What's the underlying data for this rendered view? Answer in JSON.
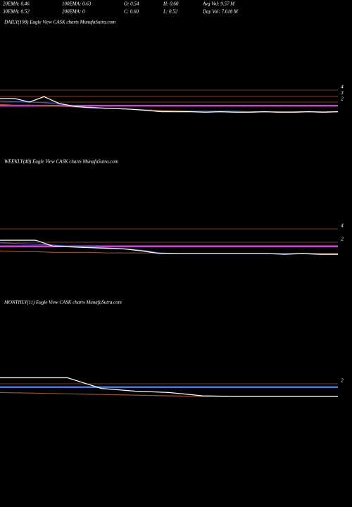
{
  "header": {
    "rows": [
      [
        "20EMA: 0.46",
        "100EMA: 0.63",
        "O: 0.54",
        "H: 0.60",
        "Avg Vol: 9.57 M"
      ],
      [
        "30EMA: 0.52",
        "200EMA: 0",
        "C: 0.60",
        "L: 0.52",
        "Day Vol: 7.618 M"
      ]
    ]
  },
  "chart_data": [
    {
      "type": "line",
      "title": "DAILY(198) Eagle  View  CASK charts MunafaSutra.com",
      "ylim": [
        0,
        15
      ],
      "yticks": [
        4,
        3,
        2
      ],
      "grid": true,
      "grid_color": "#a0522d",
      "levels": [
        {
          "value": 1.4,
          "color": "#d040d0"
        }
      ],
      "series": [
        {
          "color": "#a0522d",
          "values": [
            1.6,
            1.5,
            1.5,
            1.4,
            1.3,
            1.2,
            1.1,
            1.0,
            0.9,
            0.8,
            0.7,
            0.6,
            0.6,
            0.5,
            0.5,
            0.5,
            0.5,
            0.4,
            0.4,
            0.4,
            0.4,
            0.4,
            0.4,
            0.4
          ]
        },
        {
          "color": "#3a5fd0",
          "values": [
            2.2,
            2.1,
            2.0,
            1.9,
            1.7,
            1.4,
            1.2,
            1.0,
            0.9,
            0.8,
            0.6,
            0.5,
            0.4,
            0.4,
            0.4,
            0.4,
            0.4,
            0.3,
            0.4,
            0.3,
            0.3,
            0.4,
            0.3,
            0.4
          ]
        },
        {
          "color": "#ffffff",
          "values": [
            2.6,
            2.6,
            2.0,
            2.9,
            1.8,
            1.3,
            1.1,
            1.0,
            0.9,
            0.8,
            0.6,
            0.4,
            0.4,
            0.4,
            0.3,
            0.4,
            0.3,
            0.3,
            0.4,
            0.3,
            0.3,
            0.4,
            0.3,
            0.4
          ]
        }
      ]
    },
    {
      "type": "line",
      "title": "WEEKLY(48) Eagle  View  CASK charts MunafaSutra.com",
      "ylim": [
        0,
        14
      ],
      "yticks": [
        4,
        2
      ],
      "grid": true,
      "grid_color": "#a0522d",
      "levels": [
        {
          "value": 1.4,
          "color": "#d040d0"
        }
      ],
      "series": [
        {
          "color": "#a0522d",
          "values": [
            0.7,
            0.6,
            0.6,
            0.5,
            0.5,
            0.5,
            0.4,
            0.4,
            0.4,
            0.4,
            0.3,
            0.3,
            0.3,
            0.3,
            0.3,
            0.3,
            0.3,
            0.3,
            0.3,
            0.3
          ]
        },
        {
          "color": "#3a5fd0",
          "values": [
            1.9,
            1.8,
            1.7,
            1.6,
            1.4,
            1.3,
            1.2,
            1.0,
            0.8,
            0.4,
            0.3,
            0.3,
            0.3,
            0.3,
            0.3,
            0.3,
            0.3,
            0.3,
            0.2,
            0.2
          ]
        },
        {
          "color": "#ffffff",
          "values": [
            2.3,
            2.3,
            2.3,
            1.4,
            1.3,
            1.2,
            1.1,
            1.0,
            0.7,
            0.3,
            0.3,
            0.3,
            0.3,
            0.3,
            0.3,
            0.3,
            0.2,
            0.3,
            0.2,
            0.2
          ]
        }
      ]
    },
    {
      "type": "line",
      "title": "MONTHLY(11) Eagle  View  CASK charts MunafaSutra.com",
      "ylim": [
        0,
        14
      ],
      "yticks": [
        2
      ],
      "grid": true,
      "grid_color": "#a0522d",
      "levels": [
        {
          "value": 1.5,
          "color": "#4a78d8"
        }
      ],
      "series": [
        {
          "color": "#a0522d",
          "values": [
            0.7,
            0.6,
            0.5,
            0.4,
            0.3,
            0.2,
            0.1,
            0.1,
            0.1,
            0.1,
            0.1
          ]
        },
        {
          "color": "#ffffff",
          "values": [
            2.9,
            2.9,
            2.9,
            1.3,
            0.9,
            0.7,
            0.2,
            0.1,
            0.1,
            0.1,
            0.1
          ]
        }
      ]
    }
  ]
}
